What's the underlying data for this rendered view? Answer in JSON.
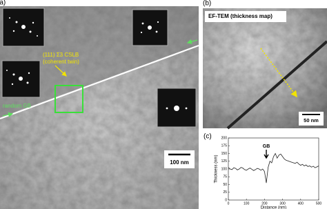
{
  "panels": {
    "a": {
      "label": "(a)",
      "twin_label_1": "(111) Σ3 CSLB",
      "twin_label_2": "(coherent twin)",
      "gb_label": "random GB",
      "scale_bar": "100 nm"
    },
    "b": {
      "label": "(b)",
      "title": "EF-TEM (thickness map)",
      "scale_bar": "50 nm"
    },
    "c": {
      "label": "(c)"
    }
  },
  "chart_data": {
    "type": "line",
    "xlabel": "Distance (nm)",
    "ylabel": "Thickness (nm)",
    "annotation": "GB",
    "x": [
      0,
      10,
      20,
      30,
      40,
      50,
      60,
      70,
      80,
      90,
      100,
      110,
      120,
      130,
      140,
      150,
      160,
      170,
      180,
      190,
      200,
      210,
      220,
      230,
      240,
      250,
      260,
      270,
      280,
      290,
      300,
      310,
      320,
      330,
      340,
      350,
      360,
      370,
      380,
      390,
      400,
      410,
      420,
      430,
      440,
      450,
      460,
      470,
      480,
      490,
      500
    ],
    "values": [
      105,
      100,
      98,
      104,
      102,
      97,
      100,
      105,
      103,
      98,
      96,
      100,
      103,
      99,
      95,
      98,
      102,
      100,
      96,
      100,
      92,
      55,
      105,
      125,
      120,
      140,
      150,
      135,
      145,
      148,
      140,
      132,
      128,
      126,
      124,
      122,
      120,
      118,
      122,
      116,
      112,
      115,
      110,
      113,
      108,
      110,
      106,
      109,
      104,
      107,
      110
    ],
    "color": "#222222",
    "xlim": [
      0,
      500
    ],
    "xticks": [
      0,
      100,
      200,
      300,
      400,
      500
    ],
    "ylim": [
      0,
      200
    ],
    "yticks": [
      0,
      25,
      50,
      75,
      100,
      125,
      150,
      175,
      200
    ]
  }
}
